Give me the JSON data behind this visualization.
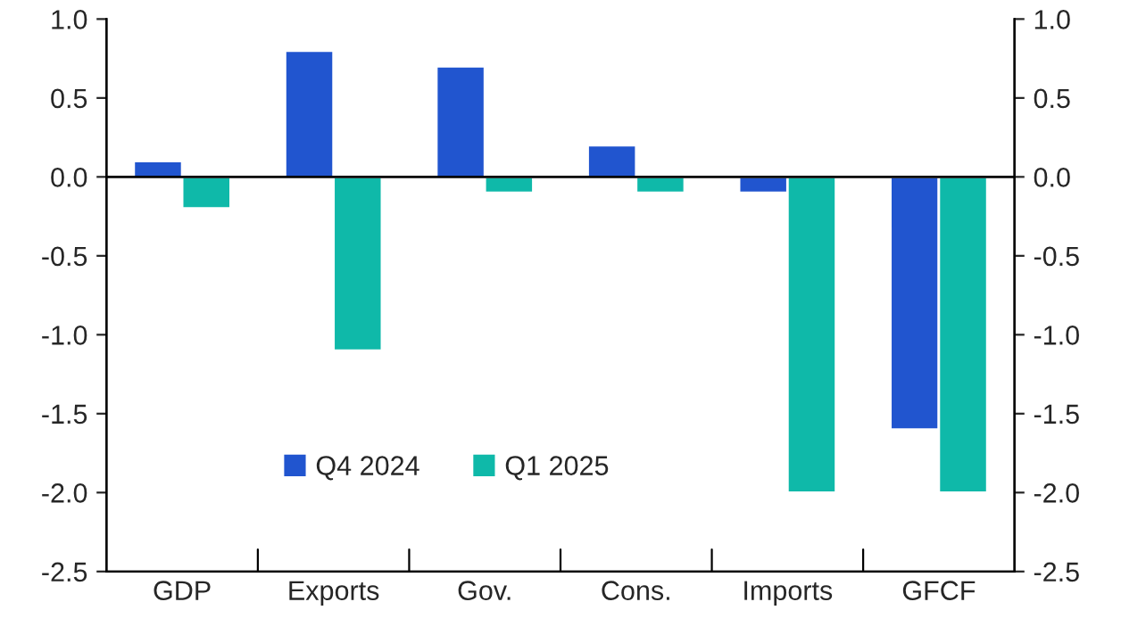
{
  "chart_data": {
    "type": "bar",
    "categories": [
      "GDP",
      "Exports",
      "Gov.",
      "Cons.",
      "Imports",
      "GFCF"
    ],
    "series": [
      {
        "name": "Q4 2024",
        "color": "#2155cf",
        "values": [
          0.1,
          0.8,
          0.7,
          0.2,
          -0.1,
          -1.6
        ]
      },
      {
        "name": "Q1 2025",
        "color": "#0fb9a9",
        "values": [
          -0.2,
          -1.1,
          -0.1,
          -0.1,
          -2.0,
          -2.0
        ]
      }
    ],
    "ylim": [
      -2.5,
      1.0
    ],
    "yticks": [
      {
        "value": -2.5,
        "label": "-2.5"
      },
      {
        "value": -2.0,
        "label": "-2.0"
      },
      {
        "value": -1.5,
        "label": "-1.5"
      },
      {
        "value": -1.0,
        "label": "-1.0"
      },
      {
        "value": -0.5,
        "label": "-0.5"
      },
      {
        "value": 0.0,
        "label": "0.0"
      },
      {
        "value": 0.5,
        "label": "0.5"
      },
      {
        "value": 1.0,
        "label": "1.0"
      }
    ],
    "y2lim": [
      -2.5,
      1.0
    ],
    "y2ticks": [
      {
        "value": -2.5,
        "label": "-2.5"
      },
      {
        "value": -2.0,
        "label": "-2.0"
      },
      {
        "value": -1.5,
        "label": "-1.5"
      },
      {
        "value": -1.0,
        "label": "-1.0"
      },
      {
        "value": -0.5,
        "label": "-0.5"
      },
      {
        "value": 0.0,
        "label": "0.0"
      },
      {
        "value": 0.5,
        "label": "0.5"
      },
      {
        "value": 1.0,
        "label": "1.0"
      }
    ],
    "ref_lines": [
      {
        "axis": "y",
        "value": 0.0,
        "color": "#000000"
      }
    ],
    "legend": "bottom left",
    "grid": false
  }
}
